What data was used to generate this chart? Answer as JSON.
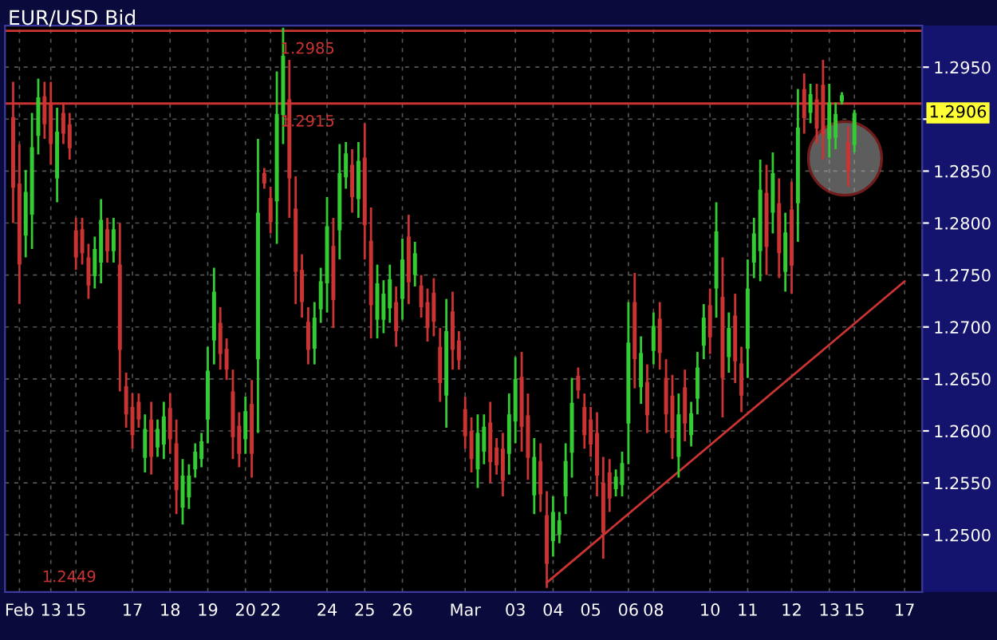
{
  "chart_data": {
    "type": "candlestick",
    "title": "EUR/USD Bid",
    "categories": [
      null,
      "Feb",
      null,
      null,
      null,
      null,
      "13",
      null,
      null,
      null,
      "15",
      null,
      null,
      null,
      null,
      null,
      null,
      null,
      null,
      "17",
      null,
      null,
      null,
      null,
      null,
      "18",
      null,
      null,
      null,
      null,
      null,
      "19",
      null,
      null,
      null,
      null,
      null,
      "20",
      null,
      null,
      null,
      "22",
      null,
      null,
      null,
      null,
      null,
      null,
      null,
      null,
      "24",
      null,
      null,
      null,
      null,
      null,
      "25",
      null,
      null,
      null,
      null,
      null,
      "26",
      null,
      null,
      null,
      null,
      null,
      null,
      null,
      null,
      null,
      "Mar",
      null,
      null,
      null,
      null,
      null,
      null,
      null,
      "03",
      null,
      null,
      null,
      null,
      null,
      "04",
      null,
      null,
      null,
      null,
      null,
      "05",
      null,
      null,
      null,
      null,
      null,
      "06",
      null,
      null,
      null,
      "08",
      null,
      null,
      null,
      null,
      null,
      null,
      null,
      null,
      "10",
      null,
      null,
      null,
      null,
      null,
      "11",
      null,
      null,
      null,
      null,
      null,
      null,
      "12",
      null,
      null,
      null,
      null,
      null,
      "13",
      null,
      null,
      null,
      "15",
      null,
      null,
      null,
      null,
      null,
      null,
      null,
      "17"
    ],
    "ohlc": [
      [
        1.2902,
        1.2936,
        1.28,
        1.2834
      ],
      [
        1.2838,
        1.2876,
        1.2722,
        1.276
      ],
      [
        1.2788,
        1.2851,
        1.2767,
        1.283
      ],
      [
        1.2808,
        1.2906,
        1.2775,
        1.2873
      ],
      [
        1.2884,
        1.2939,
        1.2866,
        1.2921
      ],
      [
        1.2922,
        1.2936,
        1.2881,
        1.2895
      ],
      [
        1.2916,
        1.2936,
        1.2856,
        1.2876
      ],
      [
        1.2843,
        1.2911,
        1.282,
        1.2888
      ],
      [
        1.2906,
        1.2916,
        1.2876,
        1.2886
      ],
      [
        1.2895,
        1.2906,
        1.2861,
        1.2872
      ],
      [
        1.2793,
        1.2805,
        1.2755,
        1.2767
      ],
      [
        1.2794,
        1.2805,
        1.276,
        1.2771
      ],
      [
        1.2767,
        1.278,
        1.2727,
        1.274
      ],
      [
        1.2749,
        1.2787,
        1.2737,
        1.2775
      ],
      [
        1.2762,
        1.2823,
        1.2742,
        1.2803
      ],
      [
        1.2794,
        1.2805,
        1.2762,
        1.2773
      ],
      [
        1.2773,
        1.2805,
        1.2762,
        1.2794
      ],
      [
        1.276,
        1.28,
        1.2638,
        1.2678
      ],
      [
        1.2643,
        1.2656,
        1.2603,
        1.2616
      ],
      [
        1.2623,
        1.2636,
        1.2583,
        1.2596
      ],
      [
        1.2628,
        1.2636,
        1.2603,
        1.2611
      ],
      [
        1.2574,
        1.2616,
        1.256,
        1.2602
      ],
      [
        1.2611,
        1.2628,
        1.2558,
        1.2575
      ],
      [
        1.2584,
        1.2611,
        1.2575,
        1.2602
      ],
      [
        1.2587,
        1.2628,
        1.2573,
        1.2614
      ],
      [
        1.2622,
        1.2636,
        1.2578,
        1.2592
      ],
      [
        1.2588,
        1.2611,
        1.252,
        1.2543
      ],
      [
        1.2526,
        1.2573,
        1.251,
        1.2557
      ],
      [
        1.2536,
        1.2568,
        1.2525,
        1.2557
      ],
      [
        1.2563,
        1.2588,
        1.2555,
        1.258
      ],
      [
        1.2573,
        1.2598,
        1.2565,
        1.259
      ],
      [
        1.2611,
        1.2681,
        1.2588,
        1.2658
      ],
      [
        1.2687,
        1.2757,
        1.2664,
        1.2734
      ],
      [
        1.2704,
        1.2719,
        1.2659,
        1.2674
      ],
      [
        1.2679,
        1.2689,
        1.2649,
        1.2659
      ],
      [
        1.2638,
        1.2659,
        1.2573,
        1.2594
      ],
      [
        1.2605,
        1.2618,
        1.2565,
        1.2578
      ],
      [
        1.2592,
        1.2633,
        1.2578,
        1.2619
      ],
      [
        1.2626,
        1.2649,
        1.2555,
        1.2578
      ],
      [
        1.2669,
        1.2881,
        1.2598,
        1.281
      ],
      [
        1.2848,
        1.2853,
        1.2833,
        1.2838
      ],
      [
        1.2824,
        1.2835,
        1.279,
        1.2801
      ],
      [
        1.2821,
        1.2946,
        1.278,
        1.2905
      ],
      [
        1.2904,
        1.2988,
        1.2876,
        1.2961
      ],
      [
        1.2919,
        1.2957,
        1.2805,
        1.2843
      ],
      [
        1.2814,
        1.2845,
        1.2722,
        1.2753
      ],
      [
        1.2755,
        1.277,
        1.2709,
        1.2724
      ],
      [
        1.2705,
        1.2719,
        1.2664,
        1.2678
      ],
      [
        1.2679,
        1.2724,
        1.2664,
        1.2709
      ],
      [
        1.2717,
        1.2757,
        1.2704,
        1.2744
      ],
      [
        1.2742,
        1.2825,
        1.2714,
        1.2797
      ],
      [
        1.2778,
        1.2805,
        1.2699,
        1.2726
      ],
      [
        1.2793,
        1.2876,
        1.2765,
        1.2848
      ],
      [
        1.2844,
        1.2878,
        1.2833,
        1.2867
      ],
      [
        1.2856,
        1.2871,
        1.281,
        1.2825
      ],
      [
        1.2823,
        1.2878,
        1.2805,
        1.286
      ],
      [
        1.2863,
        1.2896,
        1.2765,
        1.2798
      ],
      [
        1.2783,
        1.2815,
        1.2689,
        1.2721
      ],
      [
        1.2707,
        1.276,
        1.2689,
        1.2742
      ],
      [
        1.2707,
        1.2745,
        1.2694,
        1.2732
      ],
      [
        1.2718,
        1.276,
        1.2704,
        1.2746
      ],
      [
        1.2724,
        1.2739,
        1.2681,
        1.2696
      ],
      [
        1.2727,
        1.2785,
        1.2707,
        1.2765
      ],
      [
        1.2787,
        1.2808,
        1.2722,
        1.2743
      ],
      [
        1.275,
        1.2782,
        1.2739,
        1.2771
      ],
      [
        1.274,
        1.275,
        1.2709,
        1.2719
      ],
      [
        1.2724,
        1.2737,
        1.2686,
        1.2699
      ],
      [
        1.2733,
        1.2747,
        1.2691,
        1.2705
      ],
      [
        1.2681,
        1.2699,
        1.2628,
        1.2646
      ],
      [
        1.2634,
        1.2727,
        1.2603,
        1.2696
      ],
      [
        1.2715,
        1.2734,
        1.2659,
        1.2678
      ],
      [
        1.2687,
        1.2696,
        1.2659,
        1.2668
      ],
      [
        1.2621,
        1.2633,
        1.2583,
        1.2595
      ],
      [
        1.26,
        1.2613,
        1.256,
        1.2573
      ],
      [
        1.2563,
        1.2616,
        1.2545,
        1.2598
      ],
      [
        1.258,
        1.2616,
        1.2568,
        1.2604
      ],
      [
        1.2608,
        1.2628,
        1.255,
        1.257
      ],
      [
        1.2584,
        1.2593,
        1.2558,
        1.2567
      ],
      [
        1.2583,
        1.2598,
        1.2537,
        1.2552
      ],
      [
        1.2578,
        1.2636,
        1.2558,
        1.2616
      ],
      [
        1.2609,
        1.2671,
        1.2588,
        1.265
      ],
      [
        1.2652,
        1.2676,
        1.258,
        1.2604
      ],
      [
        1.2615,
        1.2636,
        1.2553,
        1.2574
      ],
      [
        1.2538,
        1.2593,
        1.252,
        1.2575
      ],
      [
        1.2571,
        1.2588,
        1.2522,
        1.2539
      ],
      [
        1.2519,
        1.2542,
        1.2449,
        1.2472
      ],
      [
        1.2494,
        1.2537,
        1.2479,
        1.2522
      ],
      [
        1.25,
        1.2522,
        1.2492,
        1.2514
      ],
      [
        1.2537,
        1.2588,
        1.252,
        1.2571
      ],
      [
        1.2579,
        1.2651,
        1.2555,
        1.2627
      ],
      [
        1.2653,
        1.2661,
        1.2631,
        1.2639
      ],
      [
        1.2623,
        1.2636,
        1.2583,
        1.2596
      ],
      [
        1.2611,
        1.2623,
        1.2575,
        1.2587
      ],
      [
        1.2598,
        1.2618,
        1.2537,
        1.2557
      ],
      [
        1.255,
        1.2575,
        1.2477,
        1.2502
      ],
      [
        1.256,
        1.2573,
        1.2522,
        1.2535
      ],
      [
        1.2544,
        1.2563,
        1.2537,
        1.2556
      ],
      [
        1.2548,
        1.258,
        1.2537,
        1.2569
      ],
      [
        1.2607,
        1.2724,
        1.2568,
        1.2685
      ],
      [
        1.2724,
        1.2752,
        1.2641,
        1.2669
      ],
      [
        1.2642,
        1.2691,
        1.2626,
        1.2675
      ],
      [
        1.2647,
        1.2664,
        1.2598,
        1.2615
      ],
      [
        1.2677,
        1.2714,
        1.2664,
        1.2701
      ],
      [
        1.2708,
        1.2724,
        1.2659,
        1.2675
      ],
      [
        1.2651,
        1.2669,
        1.2598,
        1.2616
      ],
      [
        1.2634,
        1.2654,
        1.2573,
        1.2593
      ],
      [
        1.2575,
        1.2636,
        1.2555,
        1.2616
      ],
      [
        1.2642,
        1.2659,
        1.259,
        1.2607
      ],
      [
        1.2596,
        1.2628,
        1.2585,
        1.2617
      ],
      [
        1.2631,
        1.2676,
        1.2616,
        1.2661
      ],
      [
        1.2682,
        1.2722,
        1.2669,
        1.2709
      ],
      [
        1.2721,
        1.2737,
        1.2674,
        1.269
      ],
      [
        1.2737,
        1.282,
        1.2709,
        1.2792
      ],
      [
        1.2729,
        1.2767,
        1.2613,
        1.2651
      ],
      [
        1.2671,
        1.2714,
        1.2656,
        1.2699
      ],
      [
        1.2711,
        1.2732,
        1.2646,
        1.2667
      ],
      [
        1.2665,
        1.2681,
        1.2618,
        1.2634
      ],
      [
        1.2679,
        1.2765,
        1.2651,
        1.2737
      ],
      [
        1.2762,
        1.2805,
        1.2747,
        1.279
      ],
      [
        1.2773,
        1.2861,
        1.2744,
        1.2832
      ],
      [
        1.2829,
        1.2856,
        1.275,
        1.2777
      ],
      [
        1.281,
        1.2868,
        1.279,
        1.2848
      ],
      [
        1.2819,
        1.2843,
        1.2747,
        1.2771
      ],
      [
        1.2753,
        1.281,
        1.2734,
        1.2791
      ],
      [
        1.2813,
        1.284,
        1.2732,
        1.2759
      ],
      [
        1.2819,
        1.2929,
        1.2782,
        1.2892
      ],
      [
        1.2929,
        1.2944,
        1.2886,
        1.2901
      ],
      [
        1.2906,
        1.2934,
        1.2896,
        1.2924
      ],
      [
        1.2919,
        1.2934,
        1.2876,
        1.2891
      ],
      [
        1.2933,
        1.2957,
        1.2861,
        1.2885
      ],
      [
        1.2881,
        1.2934,
        1.2863,
        1.2916
      ],
      [
        1.2882,
        1.2916,
        1.2871,
        1.2905
      ],
      [
        1.2917,
        1.2926,
        1.2914,
        1.2923
      ],
      [
        1.2878,
        1.2893,
        1.2835,
        1.285
      ],
      [
        1.2875,
        1.2909,
        1.2868,
        1.2906
      ],
      null,
      null,
      null,
      null,
      null,
      null,
      null,
      null
    ],
    "colors": [
      "#cc3333",
      "#cc3333",
      "#33cc33",
      "#33cc33",
      "#33cc33",
      "#cc3333",
      "#cc3333",
      "#33cc33",
      "#cc3333",
      "#cc3333",
      "#cc3333",
      "#cc3333",
      "#cc3333",
      "#33cc33",
      "#33cc33",
      "#cc3333",
      "#33cc33",
      "#cc3333",
      "#cc3333",
      "#cc3333",
      "#cc3333",
      "#33cc33",
      "#cc3333",
      "#33cc33",
      "#33cc33",
      "#cc3333",
      "#cc3333",
      "#33cc33",
      "#33cc33",
      "#33cc33",
      "#33cc33",
      "#33cc33",
      "#33cc33",
      "#cc3333",
      "#cc3333",
      "#cc3333",
      "#cc3333",
      "#33cc33",
      "#cc3333",
      "#33cc33",
      "#cc3333",
      "#cc3333",
      "#33cc33",
      "#33cc33",
      "#cc3333",
      "#cc3333",
      "#cc3333",
      "#cc3333",
      "#33cc33",
      "#33cc33",
      "#33cc33",
      "#cc3333",
      "#33cc33",
      "#33cc33",
      "#cc3333",
      "#33cc33",
      "#cc3333",
      "#cc3333",
      "#33cc33",
      "#33cc33",
      "#33cc33",
      "#cc3333",
      "#33cc33",
      "#cc3333",
      "#33cc33",
      "#cc3333",
      "#cc3333",
      "#cc3333",
      "#cc3333",
      "#33cc33",
      "#cc3333",
      "#cc3333",
      "#cc3333",
      "#cc3333",
      "#33cc33",
      "#33cc33",
      "#cc3333",
      "#cc3333",
      "#cc3333",
      "#33cc33",
      "#33cc33",
      "#cc3333",
      "#cc3333",
      "#33cc33",
      "#cc3333",
      "#cc3333",
      "#33cc33",
      "#33cc33",
      "#33cc33",
      "#33cc33",
      "#cc3333",
      "#cc3333",
      "#cc3333",
      "#cc3333",
      "#cc3333",
      "#cc3333",
      "#33cc33",
      "#33cc33",
      "#33cc33",
      "#cc3333",
      "#33cc33",
      "#cc3333",
      "#33cc33",
      "#cc3333",
      "#cc3333",
      "#cc3333",
      "#33cc33",
      "#cc3333",
      "#33cc33",
      "#33cc33",
      "#33cc33",
      "#cc3333",
      "#33cc33",
      "#cc3333",
      "#33cc33",
      "#cc3333",
      "#cc3333",
      "#33cc33",
      "#33cc33",
      "#33cc33",
      "#cc3333",
      "#33cc33",
      "#cc3333",
      "#33cc33",
      "#cc3333",
      "#33cc33",
      "#cc3333",
      "#33cc33",
      "#cc3333",
      "#cc3333",
      "#33cc33",
      "#33cc33",
      "#33cc33",
      "#cc3333",
      "#33cc33",
      null,
      null,
      null,
      null,
      null,
      null,
      null,
      null
    ],
    "series": [
      {
        "type": "line",
        "color": "#cc3333",
        "values": [
          null,
          null,
          null,
          null,
          null,
          null,
          null,
          null,
          null,
          null,
          null,
          null,
          null,
          null,
          null,
          null,
          null,
          null,
          null,
          null,
          null,
          null,
          null,
          null,
          null,
          null,
          null,
          null,
          null,
          null,
          null,
          null,
          null,
          null,
          null,
          null,
          null,
          null,
          null,
          null,
          null,
          null,
          null,
          null,
          null,
          null,
          null,
          null,
          null,
          null,
          null,
          null,
          null,
          null,
          null,
          null,
          null,
          null,
          null,
          null,
          null,
          null,
          null,
          null,
          null,
          null,
          null,
          null,
          null,
          null,
          null,
          null,
          null,
          null,
          null,
          null,
          null,
          null,
          null,
          null,
          null,
          null,
          null,
          null,
          null,
          1.2454,
          null,
          null,
          null,
          null,
          null,
          null,
          null,
          null,
          null,
          null,
          null,
          null,
          null,
          null,
          null,
          null,
          null,
          null,
          null,
          null,
          null,
          null,
          null,
          null,
          null,
          null,
          null,
          null,
          null,
          null,
          null,
          null,
          null,
          null,
          null,
          null,
          null,
          null,
          null,
          null,
          null,
          null,
          null,
          null,
          null,
          null,
          null,
          null,
          null,
          null,
          null,
          null,
          null,
          null,
          null,
          null,
          1.2744
        ]
      }
    ],
    "ylim": [
      1.2445,
      1.299
    ],
    "yticks": [
      {
        "value": 1.25,
        "label": "1.2500"
      },
      {
        "value": 1.255,
        "label": "1.2550"
      },
      {
        "value": 1.26,
        "label": "1.2600"
      },
      {
        "value": 1.265,
        "label": "1.2650"
      },
      {
        "value": 1.27,
        "label": "1.2700"
      },
      {
        "value": 1.275,
        "label": "1.2750"
      },
      {
        "value": 1.28,
        "label": "1.2800"
      },
      {
        "value": 1.285,
        "label": "1.2850"
      },
      {
        "value": 1.29,
        "label": null
      },
      {
        "value": 1.295,
        "label": "1.2950"
      }
    ],
    "ref_lines": [
      {
        "axis": "y",
        "value": 1.2985,
        "label": "1.2985",
        "color": "#cc3333"
      },
      {
        "axis": "y",
        "value": 1.2915,
        "label": "1.2915",
        "color": "#cc3333"
      }
    ],
    "annotations": [
      "1.2449",
      "1.2906"
    ],
    "grid": true,
    "legend": false
  }
}
